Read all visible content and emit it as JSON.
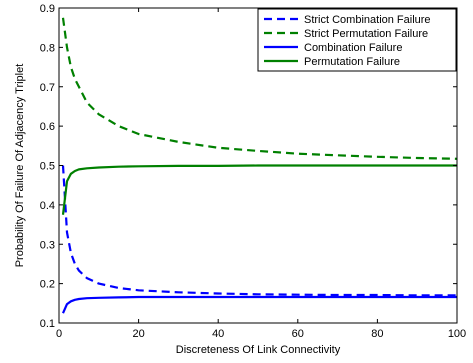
{
  "chart_data": {
    "type": "line",
    "title": "",
    "xlabel": "Discreteness Of Link Connectivity",
    "ylabel": "Probability Of Failure Of Adjacency Triplet",
    "xlim": [
      0,
      100
    ],
    "ylim": [
      0.1,
      0.9
    ],
    "x_ticks": [
      0,
      20,
      40,
      60,
      80,
      100
    ],
    "y_ticks": [
      0.1,
      0.2,
      0.3,
      0.4,
      0.5,
      0.6,
      0.7,
      0.8,
      0.9
    ],
    "x_tick_labels": [
      "0",
      "20",
      "40",
      "60",
      "80",
      "100"
    ],
    "y_tick_labels": [
      "0.1",
      "0.2",
      "0.3",
      "0.4",
      "0.5",
      "0.6",
      "0.7",
      "0.8",
      "0.9"
    ],
    "grid": false,
    "legend_position": "top-right",
    "x": [
      1,
      2,
      3,
      4,
      5,
      7,
      10,
      15,
      20,
      30,
      40,
      50,
      60,
      70,
      80,
      90,
      100
    ],
    "series": [
      {
        "name": "Strict Combination Failure",
        "color": "#0000ff",
        "dash": "dashed",
        "values": [
          0.5,
          0.33,
          0.278,
          0.25,
          0.233,
          0.214,
          0.2,
          0.189,
          0.183,
          0.178,
          0.175,
          0.173,
          0.172,
          0.171,
          0.171,
          0.17,
          0.17
        ]
      },
      {
        "name": "Strict Permutation Failure",
        "color": "#008000",
        "dash": "dashed",
        "values": [
          0.875,
          0.8,
          0.75,
          0.72,
          0.7,
          0.66,
          0.63,
          0.6,
          0.58,
          0.56,
          0.545,
          0.537,
          0.53,
          0.526,
          0.522,
          0.519,
          0.517
        ]
      },
      {
        "name": "Combination Failure",
        "color": "#0000ff",
        "dash": "solid",
        "values": [
          0.125,
          0.148,
          0.155,
          0.159,
          0.161,
          0.163,
          0.164,
          0.165,
          0.166,
          0.166,
          0.166,
          0.166,
          0.166,
          0.166,
          0.166,
          0.166,
          0.166
        ]
      },
      {
        "name": "Permutation Failure",
        "color": "#008000",
        "dash": "solid",
        "values": [
          0.375,
          0.46,
          0.479,
          0.486,
          0.49,
          0.493,
          0.495,
          0.497,
          0.498,
          0.499,
          0.499,
          0.5,
          0.5,
          0.5,
          0.5,
          0.5,
          0.5
        ]
      }
    ]
  }
}
